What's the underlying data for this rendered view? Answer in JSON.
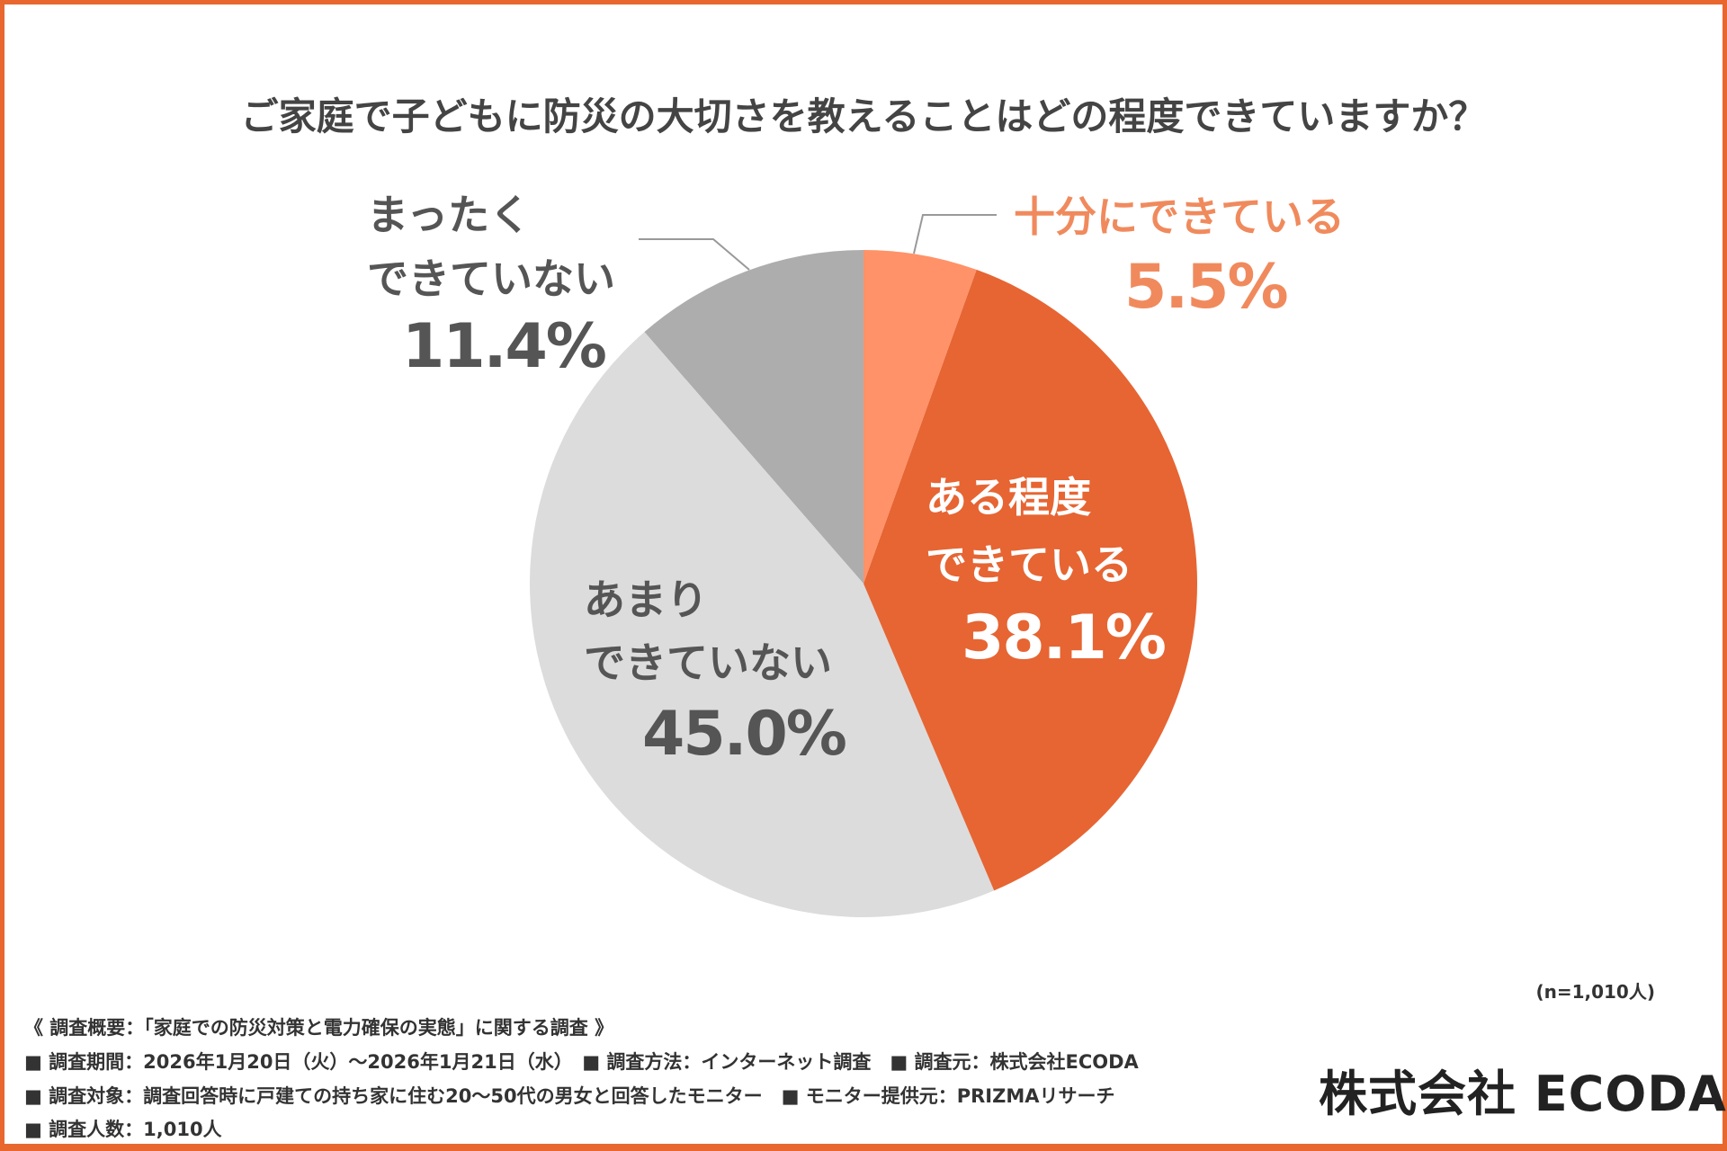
{
  "title": "ご家庭で子どもに防災の大切さを教えることはどの程度できていますか？",
  "chart_data": {
    "type": "pie",
    "title": "ご家庭で子どもに防災の大切さを教えることはどの程度できていますか？",
    "slices": [
      {
        "label": "十分にできている",
        "value": 5.5,
        "value_label": "5.5%",
        "color": "#ff9268"
      },
      {
        "label": "ある程度できている",
        "label_lines": [
          "ある程度",
          "できている"
        ],
        "value": 38.1,
        "value_label": "38.1%",
        "color": "#e66533"
      },
      {
        "label": "あまりできていない",
        "label_lines": [
          "あまり",
          "できていない"
        ],
        "value": 45.0,
        "value_label": "45.0%",
        "color": "#dcdcdc"
      },
      {
        "label": "まったくできていない",
        "label_lines": [
          "まったく",
          "できていない"
        ],
        "value": 11.4,
        "value_label": "11.4%",
        "color": "#adadad"
      }
    ],
    "start": "top",
    "direction": "clockwise"
  },
  "sample_note": "(n=1,010人)",
  "footer": {
    "summary": "《 調査概要：「家庭での防災対策と電力確保の実態」に関する調査 》",
    "line1": "■ 調査期間：2026年1月20日（火）〜2026年1月21日（水）　■ 調査方法：インターネット調査　■ 調査元：株式会社ECODA",
    "line2": "■ 調査対象：調査回答時に戸建ての持ち家に住む20〜50代の男女と回答したモニター　■ モニター提供元：PRIZMAリサーチ",
    "line3": "■ 調査人数：1,010人"
  },
  "logo": "株式会社 ECODA",
  "colors": {
    "border": "#e8672f",
    "label_orange": "#f08a5d",
    "label_gray": "#555555"
  }
}
